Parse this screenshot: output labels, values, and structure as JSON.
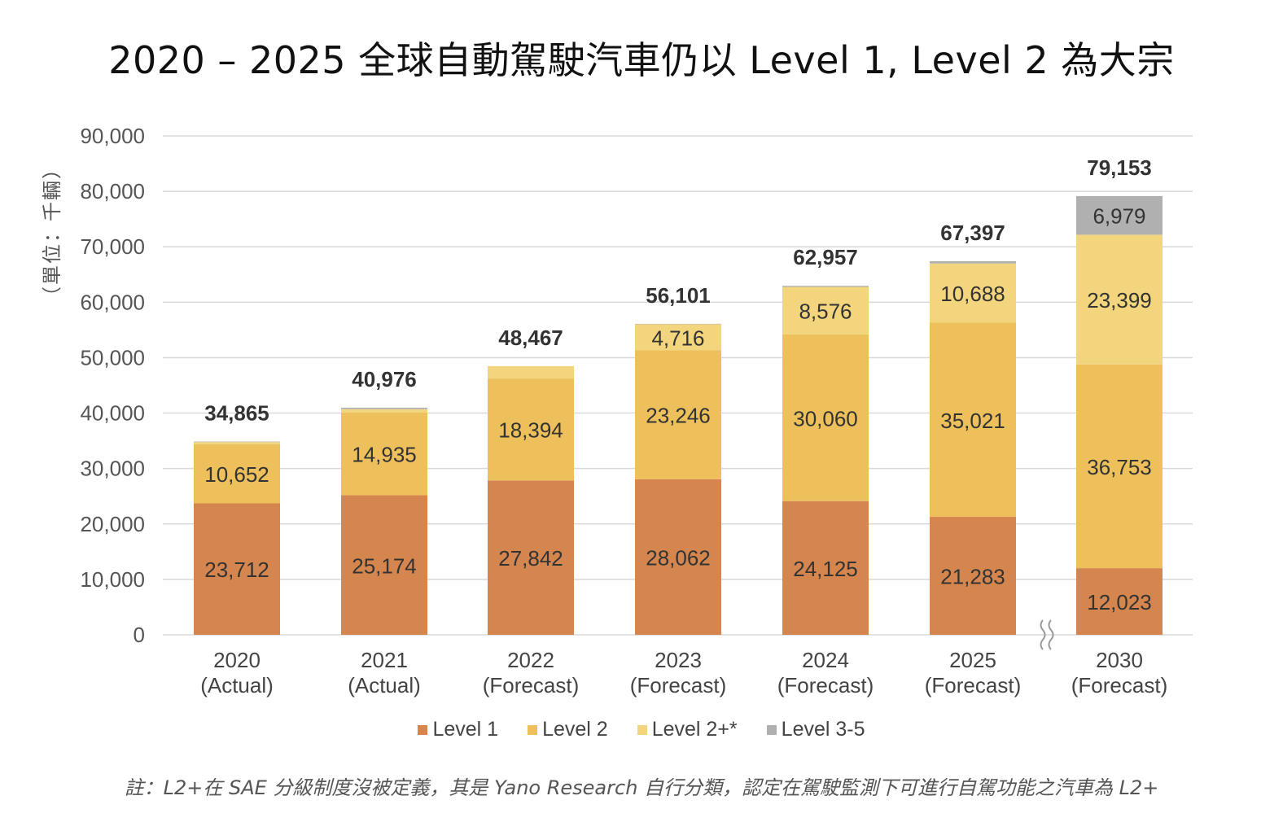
{
  "title": "2020 – 2025 全球自動駕駛汽車仍以 Level 1, Level 2 為大宗",
  "footnote": "註：L2+在 SAE 分級制度沒被定義，其是 Yano Research 自行分類，認定在駕駛監測下可進行自駕功能之汽車為 L2+",
  "colors": {
    "level1": "#D4864E",
    "level2": "#EDC05B",
    "level2plus": "#F2D57D",
    "level35": "#B0B0B0",
    "grid": "#D9D9D9",
    "axis_text": "#555555"
  },
  "legend": [
    {
      "label": "Level 1",
      "color": "#D4864E"
    },
    {
      "label": "Level 2",
      "color": "#EDC05B"
    },
    {
      "label": "Level 2+*",
      "color": "#F2D57D"
    },
    {
      "label": "Level 3-5",
      "color": "#B0B0B0"
    }
  ],
  "chart_data": {
    "type": "bar",
    "stacked": true,
    "title": "2020 – 2025 全球自動駕駛汽車仍以 Level 1, Level 2 為大宗",
    "ylabel": "（單位：千輛）",
    "xlabel": "",
    "ylim": [
      0,
      90000
    ],
    "yticks": [
      0,
      10000,
      20000,
      30000,
      40000,
      50000,
      60000,
      70000,
      80000,
      90000
    ],
    "ytick_labels": [
      "0",
      "10,000",
      "20,000",
      "30,000",
      "40,000",
      "50,000",
      "60,000",
      "70,000",
      "80,000",
      "90,000"
    ],
    "grid": true,
    "legend_position": "bottom",
    "axis_break_before_last": true,
    "categories": [
      {
        "year": "2020",
        "note": "(Actual)"
      },
      {
        "year": "2021",
        "note": "(Actual)"
      },
      {
        "year": "2022",
        "note": "(Forecast)"
      },
      {
        "year": "2023",
        "note": "(Forecast)"
      },
      {
        "year": "2024",
        "note": "(Forecast)"
      },
      {
        "year": "2025",
        "note": "(Forecast)"
      },
      {
        "year": "2030",
        "note": "(Forecast)"
      }
    ],
    "series": [
      {
        "name": "Level 1",
        "values": [
          23712,
          25174,
          27842,
          28062,
          24125,
          21283,
          12023
        ],
        "labels": [
          "23,712",
          "25,174",
          "27,842",
          "28,062",
          "24,125",
          "21,283",
          "12,023"
        ]
      },
      {
        "name": "Level 2",
        "values": [
          10652,
          14935,
          18394,
          23246,
          30060,
          35021,
          36753
        ],
        "labels": [
          "10,652",
          "14,935",
          "18,394",
          "23,246",
          "30,060",
          "35,021",
          "36,753"
        ]
      },
      {
        "name": "Level 2+*",
        "values": [
          400,
          600,
          2231,
          4716,
          8576,
          10688,
          23399
        ],
        "labels": [
          "",
          "",
          "",
          "4,716",
          "8,576",
          "10,688",
          "23,399"
        ]
      },
      {
        "name": "Level 3-5",
        "values": [
          101,
          267,
          0,
          77,
          196,
          405,
          6979
        ],
        "labels": [
          "",
          "",
          "",
          "",
          "",
          "",
          "6,979"
        ]
      }
    ],
    "totals": [
      34865,
      40976,
      48467,
      56101,
      62957,
      67397,
      79153
    ],
    "total_labels": [
      "34,865",
      "40,976",
      "48,467",
      "56,101",
      "62,957",
      "67,397",
      "79,153"
    ]
  }
}
